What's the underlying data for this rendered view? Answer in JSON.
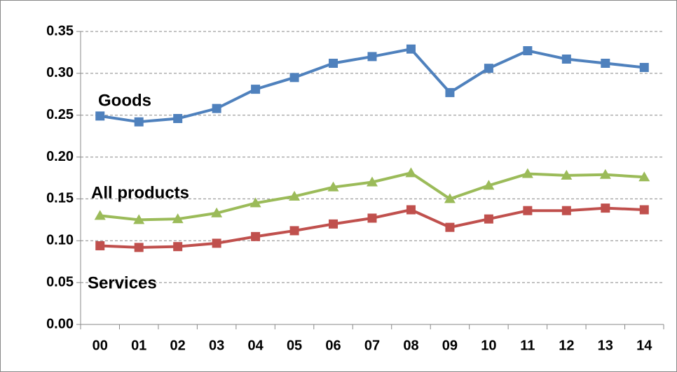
{
  "chart_data": {
    "type": "line",
    "categories": [
      "00",
      "01",
      "02",
      "03",
      "04",
      "05",
      "06",
      "07",
      "08",
      "09",
      "10",
      "11",
      "12",
      "13",
      "14"
    ],
    "series": [
      {
        "name": "Goods",
        "color": "#4f81bd",
        "marker": "square",
        "values": [
          0.249,
          0.242,
          0.246,
          0.258,
          0.281,
          0.295,
          0.312,
          0.32,
          0.329,
          0.277,
          0.306,
          0.327,
          0.317,
          0.312,
          0.307
        ]
      },
      {
        "name": "All products",
        "color": "#9bbb59",
        "marker": "triangle",
        "values": [
          0.13,
          0.125,
          0.126,
          0.133,
          0.145,
          0.153,
          0.164,
          0.17,
          0.181,
          0.15,
          0.166,
          0.18,
          0.178,
          0.179,
          0.176
        ]
      },
      {
        "name": "Services",
        "color": "#c0504d",
        "marker": "square",
        "values": [
          0.094,
          0.092,
          0.093,
          0.097,
          0.105,
          0.112,
          0.12,
          0.127,
          0.137,
          0.116,
          0.126,
          0.136,
          0.136,
          0.139,
          0.137
        ]
      }
    ],
    "ylim": [
      0,
      0.35
    ],
    "yticks": [
      {
        "value": 0,
        "label": "0.00"
      },
      0.05,
      {
        "value": 0.1,
        "label": "0.10"
      },
      0.15,
      {
        "value": 0.2,
        "label": "0.20"
      },
      0.25,
      {
        "value": 0.3,
        "label": "0.30"
      },
      0.35
    ],
    "grid": true
  }
}
